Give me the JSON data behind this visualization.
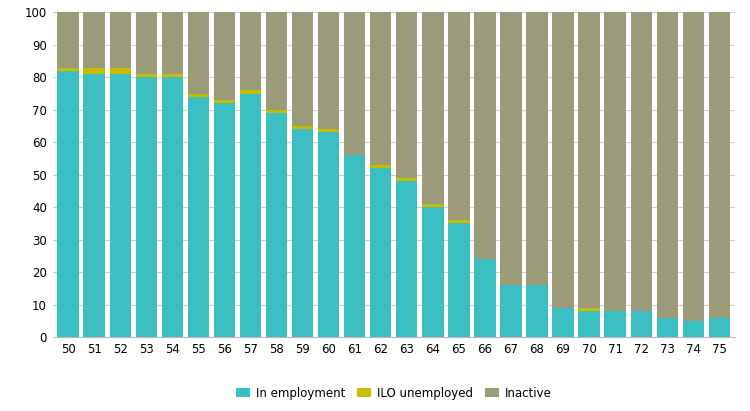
{
  "ages": [
    50,
    51,
    52,
    53,
    54,
    55,
    56,
    57,
    58,
    59,
    60,
    61,
    62,
    63,
    64,
    65,
    66,
    67,
    68,
    69,
    70,
    71,
    72,
    73,
    74,
    75
  ],
  "employed": [
    82,
    81,
    81,
    80,
    80,
    74,
    72,
    75,
    69,
    64,
    63,
    56,
    52,
    48,
    40,
    35,
    24,
    16,
    16,
    9,
    8,
    8,
    8,
    6,
    5,
    6
  ],
  "ilo_unemployed": [
    1,
    2,
    2,
    1,
    1,
    1,
    1,
    1,
    1,
    1,
    1,
    0,
    1,
    1,
    1,
    1,
    0,
    0,
    0,
    0,
    1,
    0,
    0,
    0,
    0,
    0
  ],
  "inactive": [
    17,
    17,
    17,
    19,
    19,
    25,
    27,
    24,
    30,
    35,
    36,
    44,
    47,
    51,
    59,
    64,
    76,
    84,
    84,
    91,
    91,
    92,
    92,
    94,
    95,
    94
  ],
  "employed_color": "#3cbfc3",
  "ilo_color": "#c8be00",
  "inactive_color": "#9b9b7a",
  "legend_labels": [
    "In employment",
    "ILO unemployed",
    "Inactive"
  ],
  "ylim": [
    0,
    100
  ],
  "yticks": [
    0,
    10,
    20,
    30,
    40,
    50,
    60,
    70,
    80,
    90,
    100
  ],
  "background_color": "#ffffff",
  "grid_color": "#d0d0d0"
}
